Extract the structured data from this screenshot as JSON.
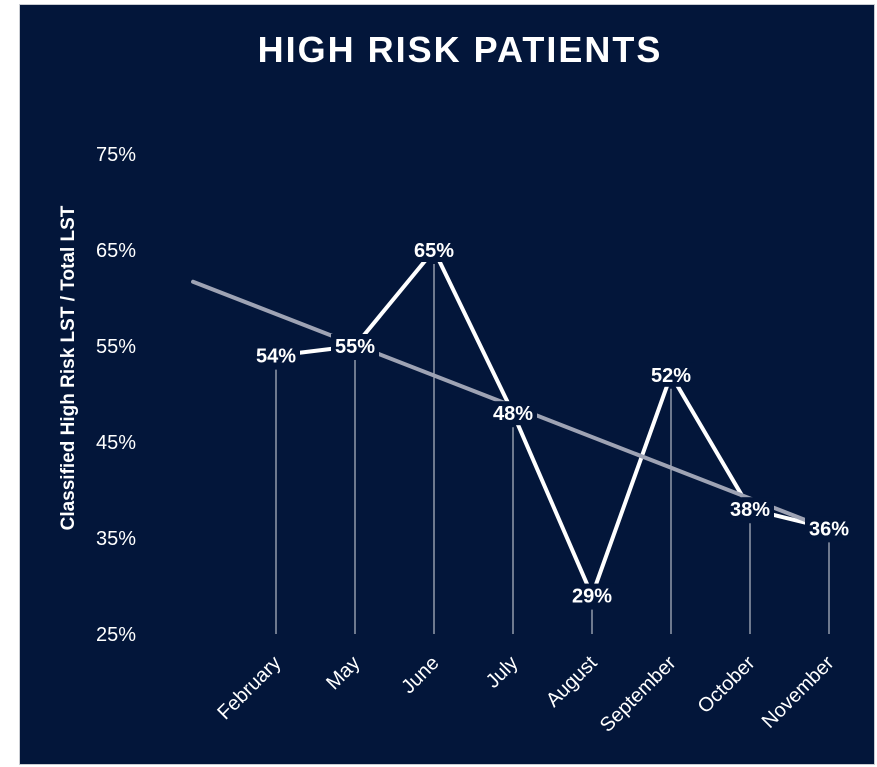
{
  "chart_data": {
    "type": "line",
    "title": "HIGH RISK PATIENTS",
    "ylabel": "Classified High Risk LST / Total LST",
    "xlabel": "",
    "categories": [
      "February",
      "May",
      "June",
      "July",
      "August",
      "September",
      "October",
      "November"
    ],
    "series": [
      {
        "values": [
          54,
          55,
          65,
          48,
          29,
          52,
          38,
          36
        ],
        "labels": [
          "54%",
          "55%",
          "65%",
          "48%",
          "29%",
          "52%",
          "38%",
          "36%"
        ],
        "color": "#ffffff"
      }
    ],
    "trendline": {
      "type": "linear",
      "color": "#9ea3b4"
    },
    "ylim": [
      25,
      75
    ],
    "yticks": [
      25,
      35,
      45,
      55,
      65,
      75
    ],
    "ytick_labels": [
      "25%",
      "35%",
      "45%",
      "55%",
      "65%",
      "75%"
    ],
    "drop_lines": true,
    "grid": false,
    "legend": "none",
    "colors": {
      "background": "#03163a",
      "line": "#ffffff",
      "trend": "#9ea3b4",
      "text": "#ffffff"
    }
  }
}
